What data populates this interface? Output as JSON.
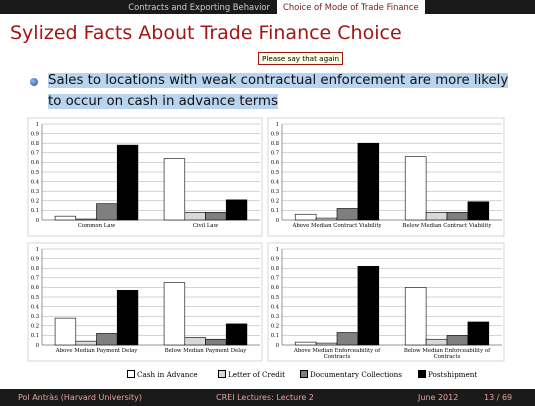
{
  "header": {
    "section": "Contracts and Exporting Behavior",
    "subsection": "Choice of Mode of Trade Finance"
  },
  "title": "Sylized Facts About Trade Finance Choice",
  "tooltip": "Please say that again",
  "bullet": "Sales to locations with weak contractual enforcement are more likely to occur on cash in advance terms",
  "footer": {
    "author": "Pol Antràs  (Harvard University)",
    "lecture": "CREI Lectures: Lecture 2",
    "date": "June 2012",
    "page": "13 / 69"
  },
  "legend": [
    {
      "label": "Cash in Advance",
      "color": "#ffffff"
    },
    {
      "label": "Letter of Credit",
      "color": "#d8d8d8"
    },
    {
      "label": "Documentary Collections",
      "color": "#7f7f7f"
    },
    {
      "label": "Postshipment",
      "color": "#000000"
    }
  ],
  "chart_data": [
    {
      "type": "bar",
      "categories": [
        "Common Law",
        "Civil Law"
      ],
      "series": [
        {
          "name": "Cash in Advance",
          "values": [
            0.04,
            0.64
          ]
        },
        {
          "name": "Letter of Credit",
          "values": [
            0.01,
            0.08
          ]
        },
        {
          "name": "Documentary Collections",
          "values": [
            0.17,
            0.08
          ]
        },
        {
          "name": "Postshipment",
          "values": [
            0.78,
            0.21
          ]
        }
      ],
      "ylim": [
        0,
        1
      ],
      "yticks": [
        "0",
        "0.1",
        "0.2",
        "0.3",
        "0.4",
        "0.5",
        "0.6",
        "0.7",
        "0.8",
        "0.9",
        "1"
      ]
    },
    {
      "type": "bar",
      "categories": [
        "Above Median Contract Viability",
        "Below Median Contract Viability"
      ],
      "series": [
        {
          "name": "Cash in Advance",
          "values": [
            0.06,
            0.66
          ]
        },
        {
          "name": "Letter of Credit",
          "values": [
            0.02,
            0.08
          ]
        },
        {
          "name": "Documentary Collections",
          "values": [
            0.12,
            0.08
          ]
        },
        {
          "name": "Postshipment",
          "values": [
            0.8,
            0.19
          ]
        }
      ],
      "ylim": [
        0,
        1
      ],
      "yticks": [
        "0",
        "0.1",
        "0.2",
        "0.3",
        "0.4",
        "0.5",
        "0.6",
        "0.7",
        "0.8",
        "0.9",
        "1"
      ]
    },
    {
      "type": "bar",
      "categories": [
        "Above Median Payment Delay",
        "Below Median Payment Delay"
      ],
      "series": [
        {
          "name": "Cash in Advance",
          "values": [
            0.28,
            0.65
          ]
        },
        {
          "name": "Letter of Credit",
          "values": [
            0.04,
            0.08
          ]
        },
        {
          "name": "Documentary Collections",
          "values": [
            0.12,
            0.06
          ]
        },
        {
          "name": "Postshipment",
          "values": [
            0.57,
            0.22
          ]
        }
      ],
      "ylim": [
        0,
        1
      ],
      "yticks": [
        "0",
        "0.1",
        "0.2",
        "0.3",
        "0.4",
        "0.5",
        "0.6",
        "0.7",
        "0.8",
        "0.9",
        "1"
      ]
    },
    {
      "type": "bar",
      "categories": [
        "Above Median Enforceability of Contracts",
        "Below Median Enforceability of Contracts"
      ],
      "series": [
        {
          "name": "Cash in Advance",
          "values": [
            0.03,
            0.6
          ]
        },
        {
          "name": "Letter of Credit",
          "values": [
            0.02,
            0.06
          ]
        },
        {
          "name": "Documentary Collections",
          "values": [
            0.13,
            0.1
          ]
        },
        {
          "name": "Postshipment",
          "values": [
            0.82,
            0.24
          ]
        }
      ],
      "ylim": [
        0,
        1
      ],
      "yticks": [
        "0",
        "0.1",
        "0.2",
        "0.3",
        "0.4",
        "0.5",
        "0.6",
        "0.7",
        "0.8",
        "0.9",
        "1"
      ]
    }
  ]
}
